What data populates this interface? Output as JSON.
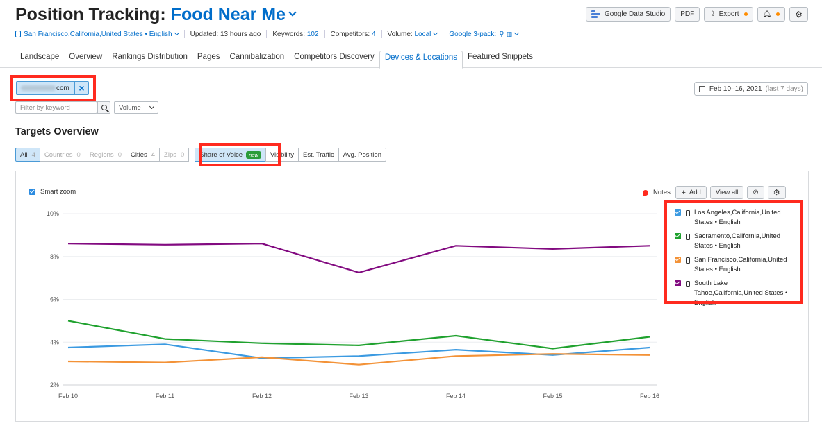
{
  "header": {
    "title_prefix": "Position Tracking:",
    "project_name": "Food Near Me"
  },
  "top_actions": {
    "google_data_studio": "Google Data Studio",
    "pdf": "PDF",
    "export": "Export"
  },
  "meta": {
    "location": "San Francisco,California,United States • English",
    "updated": "Updated: 13 hours ago",
    "keywords_label": "Keywords:",
    "keywords_value": "102",
    "competitors_label": "Competitors:",
    "competitors_value": "4",
    "volume_label": "Volume:",
    "volume_value": "Local",
    "google_3pack": "Google 3-pack:"
  },
  "tabs": [
    "Landscape",
    "Overview",
    "Rankings Distribution",
    "Pages",
    "Cannibalization",
    "Competitors Discovery",
    "Devices & Locations",
    "Featured Snippets"
  ],
  "active_tab": "Devices & Locations",
  "domain_chip": {
    "suffix": "com"
  },
  "date_range": {
    "range": "Feb 10–16, 2021",
    "note": "(last 7 days)"
  },
  "filter": {
    "placeholder": "Filter by keyword",
    "volume": "Volume"
  },
  "section_title": "Targets Overview",
  "target_filters": [
    {
      "label": "All",
      "count": "4"
    },
    {
      "label": "Countries",
      "count": "0"
    },
    {
      "label": "Regions",
      "count": "0"
    },
    {
      "label": "Cities",
      "count": "4"
    },
    {
      "label": "Zips",
      "count": "0"
    }
  ],
  "metrics": {
    "share_of_voice": "Share of Voice",
    "new_badge": "new",
    "visibility": "Visibility",
    "est_traffic": "Est. Traffic",
    "avg_position": "Avg. Position"
  },
  "chart_controls": {
    "smart_zoom": "Smart zoom",
    "notes_label": "Notes:",
    "add": "Add",
    "view_all": "View all"
  },
  "colors": {
    "accent": "#006dca",
    "highlight": "#ff2a1f",
    "los_angeles": "#3b9ae1",
    "sacramento": "#1fa12e",
    "san_francisco": "#f39237",
    "south_lake_tahoe": "#820a80"
  },
  "chart_data": {
    "type": "line",
    "x": [
      "Feb 10",
      "Feb 11",
      "Feb 12",
      "Feb 13",
      "Feb 14",
      "Feb 15",
      "Feb 16"
    ],
    "yticks": [
      "2%",
      "4%",
      "6%",
      "8%",
      "10%"
    ],
    "ylim": [
      2,
      10
    ],
    "grid": true,
    "legend_position": "right",
    "series": [
      {
        "name": "Los Angeles,California,United States • English",
        "color": "#3b9ae1",
        "values": [
          3.75,
          3.9,
          3.25,
          3.35,
          3.65,
          3.4,
          3.75
        ]
      },
      {
        "name": "Sacramento,California,United States • English",
        "color": "#1fa12e",
        "values": [
          5.0,
          4.15,
          3.95,
          3.85,
          4.3,
          3.7,
          4.25
        ]
      },
      {
        "name": "San Francisco,California,United States • English",
        "color": "#f39237",
        "values": [
          3.1,
          3.05,
          3.3,
          2.95,
          3.35,
          3.45,
          3.4
        ]
      },
      {
        "name": "South Lake Tahoe,California,United States • English",
        "color": "#820a80",
        "values": [
          8.6,
          8.55,
          8.6,
          7.25,
          8.5,
          8.35,
          8.5
        ]
      }
    ]
  }
}
